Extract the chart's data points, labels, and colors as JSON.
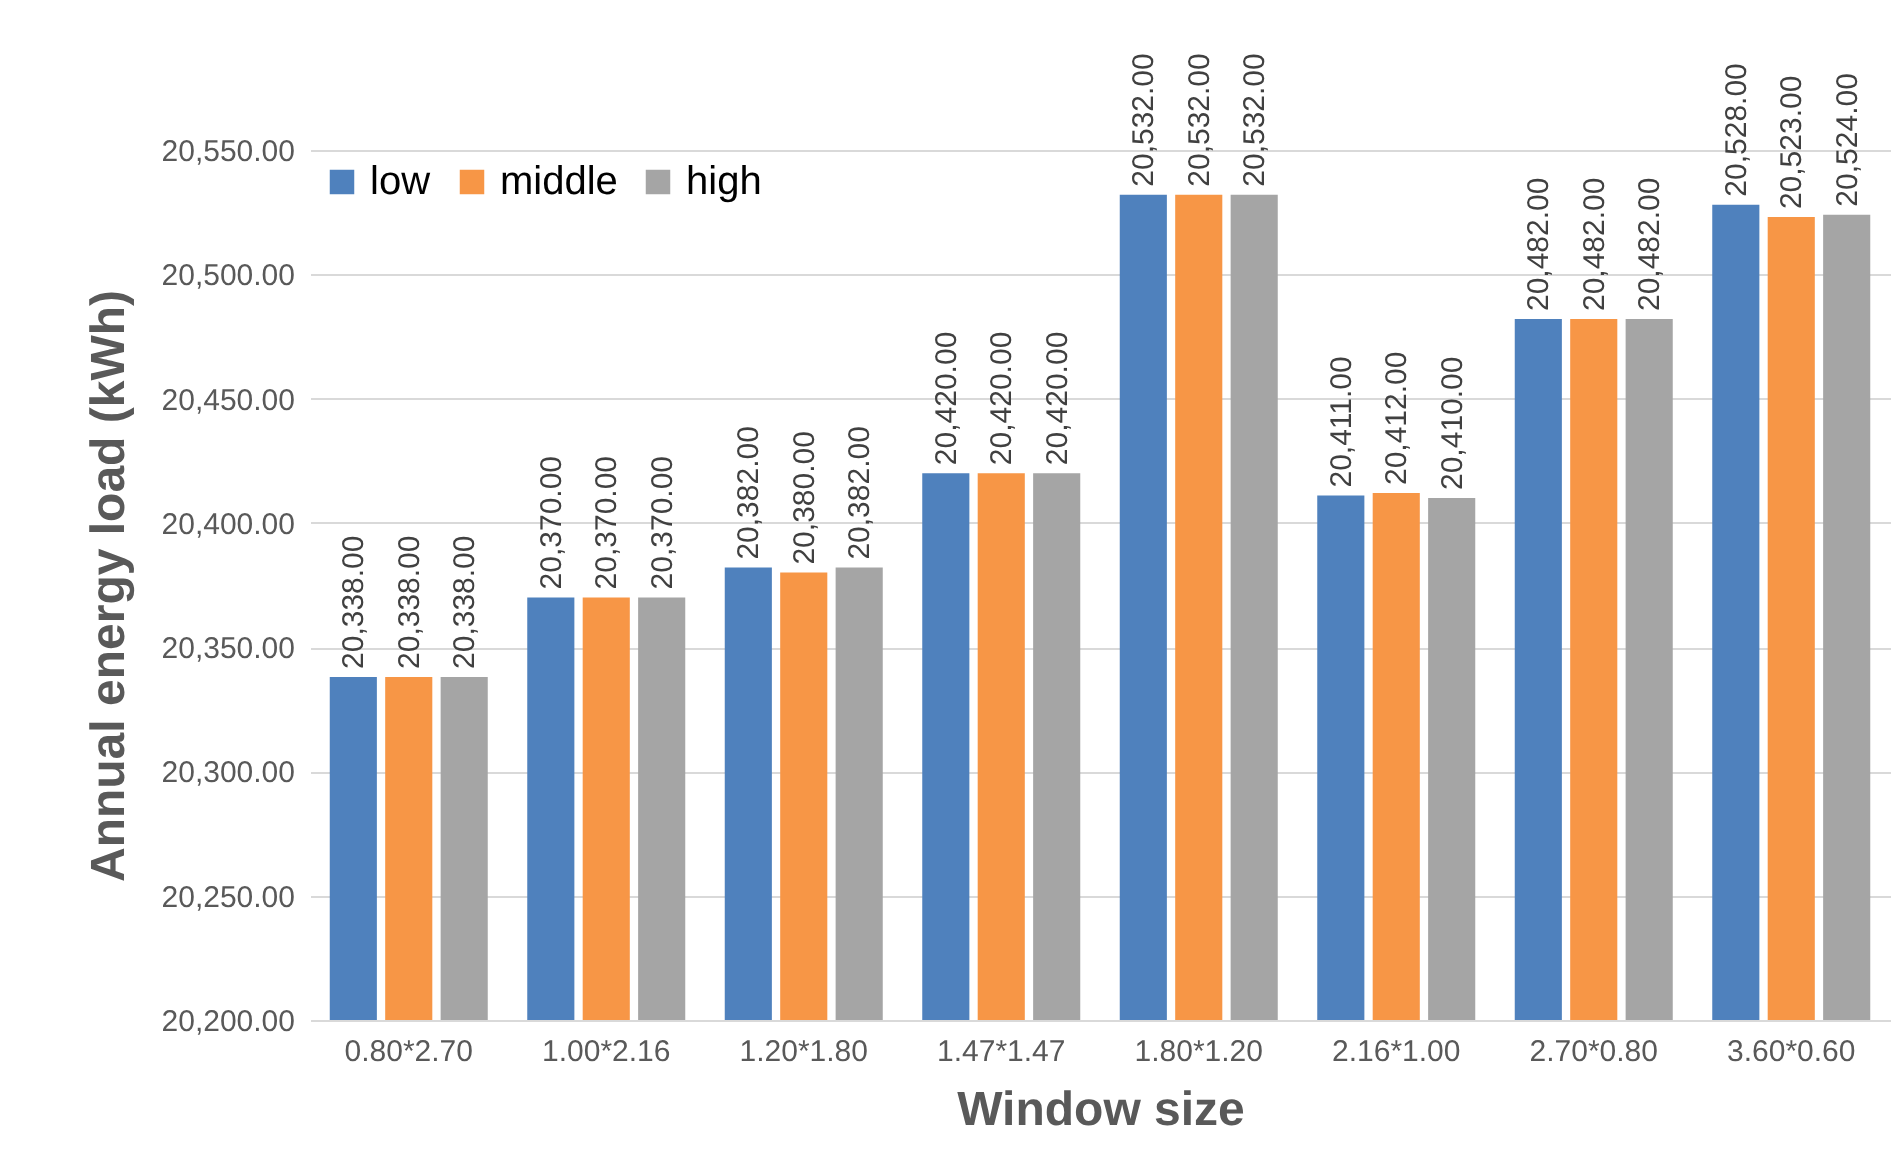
{
  "chart_data": {
    "type": "bar",
    "xlabel": "Window size",
    "ylabel": "Annual energy load (kWh)",
    "categories": [
      null,
      "0.80*2.70",
      "1.00*2.16",
      "1.20*1.80",
      "1.47*1.47",
      "1.80*1.20",
      "2.16*1.00",
      "2.70*0.80",
      "3.60*0.60"
    ],
    "series": [
      {
        "name": "low",
        "color": "#4f81bd",
        "values": [
          null,
          20338,
          20370,
          20382,
          20420,
          20532,
          20411,
          20482,
          20528
        ],
        "value_labels": [
          null,
          "20,338.00",
          "20,370.00",
          "20,382.00",
          "20,420.00",
          "20,532.00",
          "20,411.00",
          "20,482.00",
          "20,528.00"
        ]
      },
      {
        "name": "middle",
        "color": "#f79646",
        "values": [
          null,
          20338,
          20370,
          20380,
          20420,
          20532,
          20412,
          20482,
          20523
        ],
        "value_labels": [
          null,
          "20,338.00",
          "20,370.00",
          "20,380.00",
          "20,420.00",
          "20,532.00",
          "20,412.00",
          "20,482.00",
          "20,523.00"
        ]
      },
      {
        "name": "high",
        "color": "#a5a5a5",
        "values": [
          null,
          20338,
          20370,
          20382,
          20420,
          20532,
          20410,
          20482,
          20524
        ],
        "value_labels": [
          null,
          "20,338.00",
          "20,370.00",
          "20,382.00",
          "20,420.00",
          "20,532.00",
          "20,410.00",
          "20,482.00",
          "20,524.00"
        ]
      }
    ],
    "ylim": [
      20200,
      20550
    ],
    "yticks": [
      {
        "value": 20200,
        "label": "20,200.00"
      },
      {
        "value": 20250,
        "label": "20,250.00"
      },
      {
        "value": 20300,
        "label": "20,300.00"
      },
      {
        "value": 20350,
        "label": "20,350.00"
      },
      {
        "value": 20400,
        "label": "20,400.00"
      },
      {
        "value": 20450,
        "label": "20,450.00"
      },
      {
        "value": 20500,
        "label": "20,500.00"
      },
      {
        "value": 20550,
        "label": "20,550.00"
      }
    ],
    "grid": "y",
    "legend": "top left"
  }
}
